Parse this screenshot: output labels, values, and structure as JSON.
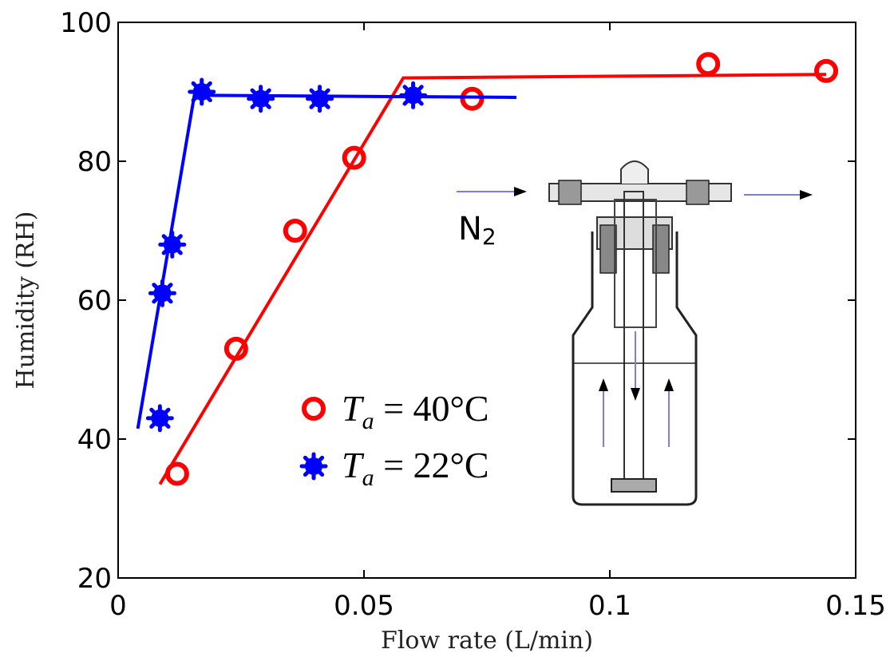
{
  "chart_data": {
    "type": "scatter",
    "xlabel": "Flow rate (L/min)",
    "ylabel": "Humidity (RH)",
    "xlim": [
      0,
      0.15
    ],
    "ylim": [
      20,
      100
    ],
    "x_ticks": [
      "0",
      "0.05",
      "0.1",
      "0.15"
    ],
    "y_ticks": [
      "20",
      "40",
      "60",
      "80",
      "100"
    ],
    "grid": false,
    "legend_placement": "center",
    "series": [
      {
        "name": "T_a = 40°C",
        "legend_main": "T",
        "legend_sub": "a",
        "legend_rest": " = 40°C",
        "color": "#ff0000",
        "marker": "circle",
        "x": [
          0.012,
          0.024,
          0.036,
          0.048,
          0.072,
          0.12,
          0.144
        ],
        "y": [
          35,
          53,
          70,
          80.5,
          89,
          94,
          93
        ],
        "fit_line": {
          "x": [
            0.0085,
            0.058,
            0.144
          ],
          "y": [
            33.5,
            92,
            92.5
          ]
        }
      },
      {
        "name": "T_a = 22°C",
        "legend_main": "T",
        "legend_sub": "a",
        "legend_rest": " = 22°C",
        "color": "#0000ff",
        "marker": "star",
        "x": [
          0.0085,
          0.009,
          0.011,
          0.017,
          0.029,
          0.041,
          0.06
        ],
        "y": [
          43,
          61,
          68,
          90,
          89,
          89,
          89.5
        ],
        "fit_line": {
          "x": [
            0.004,
            0.0155,
            0.081
          ],
          "y": [
            41.5,
            89.5,
            89.2
          ]
        }
      }
    ],
    "inset": {
      "label": "N2",
      "label_main": "N",
      "label_sub": "2"
    }
  }
}
